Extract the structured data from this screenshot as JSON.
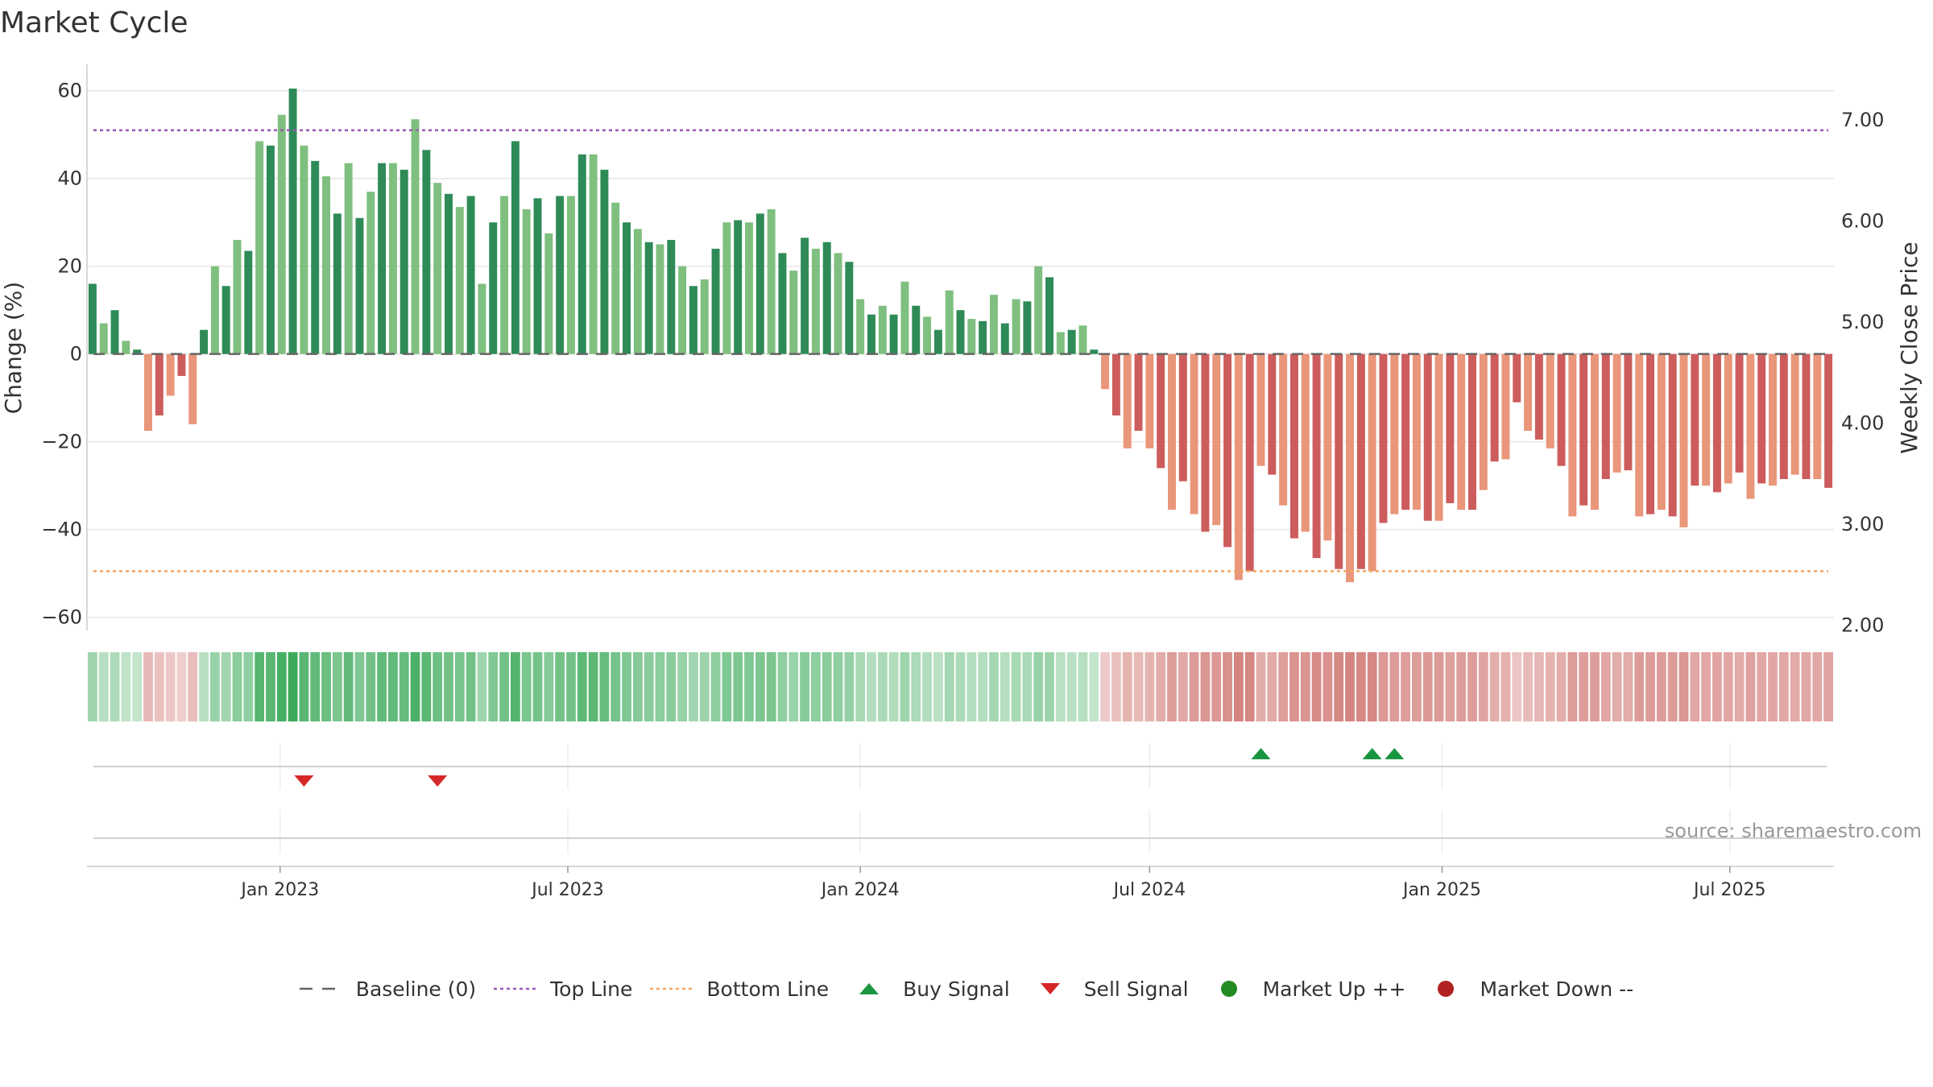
{
  "title": "Market Cycle",
  "source_text": "source: sharemaestro.com",
  "colors": {
    "pos_dark": "#2e8b57",
    "pos_light": "#7fbf7f",
    "neg_dark": "#cd5c5c",
    "neg_light": "#e9967a",
    "top_line": "#9b59b6",
    "bottom_line": "#f4a460",
    "baseline": "#666666",
    "buy": "#1a9641",
    "sell": "#d62728",
    "market_up": "#228b22",
    "market_down": "#b22222"
  },
  "legend": [
    {
      "label": "Baseline (0)",
      "symbol": "dash",
      "color": "#666666"
    },
    {
      "label": "Top Line",
      "symbol": "dot-line",
      "color": "#9b59b6"
    },
    {
      "label": "Bottom Line",
      "symbol": "dot-line",
      "color": "#f4a460"
    },
    {
      "label": "Buy Signal",
      "symbol": "triangle-up",
      "color": "#1a9641"
    },
    {
      "label": "Sell Signal",
      "symbol": "triangle-down",
      "color": "#d62728"
    },
    {
      "label": "Market Up ++",
      "symbol": "circle",
      "color": "#228b22"
    },
    {
      "label": "Market Down --",
      "symbol": "circle",
      "color": "#b22222"
    }
  ],
  "chart_data": {
    "type": "bar",
    "title": "Market Cycle",
    "ylabel": "Change (%)",
    "y2label": "Weekly Close Price",
    "ylim": [
      -63,
      66
    ],
    "y2lim": [
      1.95,
      7.55
    ],
    "yticks": [
      "60",
      "40",
      "20",
      "0",
      "−20",
      "−40",
      "−60"
    ],
    "y2ticks": [
      "7.00",
      "6.00",
      "5.00",
      "4.00",
      "3.00",
      "2.00"
    ],
    "x_start": "2022-09-05",
    "x_step_days": 7,
    "xticks": [
      {
        "label": "Jan 2023",
        "date": "2023-01-01"
      },
      {
        "label": "Jul 2023",
        "date": "2023-07-01"
      },
      {
        "label": "Jan 2024",
        "date": "2024-01-01"
      },
      {
        "label": "Jul 2024",
        "date": "2024-07-01"
      },
      {
        "label": "Jan 2025",
        "date": "2025-01-01"
      },
      {
        "label": "Jul 2025",
        "date": "2025-07-01"
      }
    ],
    "top_line": 51,
    "bottom_line": -49.5,
    "baseline": 0,
    "values": [
      16,
      7,
      10,
      3,
      1,
      -17.5,
      -14,
      -9.5,
      -5,
      -16,
      5.5,
      20,
      15.5,
      26,
      23.5,
      48.5,
      47.5,
      54.5,
      60.5,
      47.5,
      44,
      40.5,
      32,
      43.5,
      31,
      37,
      43.5,
      43.5,
      42,
      53.5,
      46.5,
      39,
      36.5,
      33.5,
      36,
      16,
      30,
      36,
      48.5,
      33,
      35.5,
      27.5,
      36,
      36,
      45.5,
      45.5,
      42,
      34.5,
      30,
      28.5,
      25.5,
      25,
      26,
      20,
      15.5,
      17,
      24,
      30,
      30.5,
      30,
      32,
      33,
      23,
      19,
      26.5,
      24,
      25.5,
      23,
      21,
      12.5,
      9,
      11,
      9,
      16.5,
      11,
      8.5,
      5.5,
      14.5,
      10,
      8,
      7.5,
      13.5,
      7,
      12.5,
      12,
      20,
      17.5,
      5,
      5.5,
      6.5,
      1,
      -8,
      -14,
      -21.5,
      -17.5,
      -21.5,
      -26,
      -35.5,
      -29,
      -36.5,
      -40.5,
      -39,
      -44,
      -51.5,
      -49.5,
      -25.5,
      -27.5,
      -34.5,
      -42,
      -40.5,
      -46.5,
      -42.5,
      -49,
      -52,
      -49,
      -49.5,
      -38.5,
      -36.5,
      -35.5,
      -35.5,
      -38,
      -38,
      -34,
      -35.5,
      -35.5,
      -31,
      -24.5,
      -24,
      -11,
      -17.5,
      -19.5,
      -21.5,
      -25.5,
      -37,
      -34.5,
      -35.5,
      -28.5,
      -27,
      -26.5,
      -37,
      -36.5,
      -35.5,
      -37,
      -39.5,
      -30,
      -30,
      -31.5,
      -29.5,
      -27,
      -33,
      -29.5,
      -30,
      -28.5,
      -27.5,
      -28.5,
      -28.5,
      -30.5
    ],
    "buy_signals": [
      {
        "date": "2024-09-09",
        "label": "Buy Signal"
      },
      {
        "date": "2024-11-18",
        "label": "Buy Signal"
      },
      {
        "date": "2024-12-02",
        "label": "Buy Signal"
      }
    ],
    "sell_signals": [
      {
        "date": "2023-01-16",
        "label": "Sell Signal"
      },
      {
        "date": "2023-04-10",
        "label": "Sell Signal"
      }
    ]
  }
}
